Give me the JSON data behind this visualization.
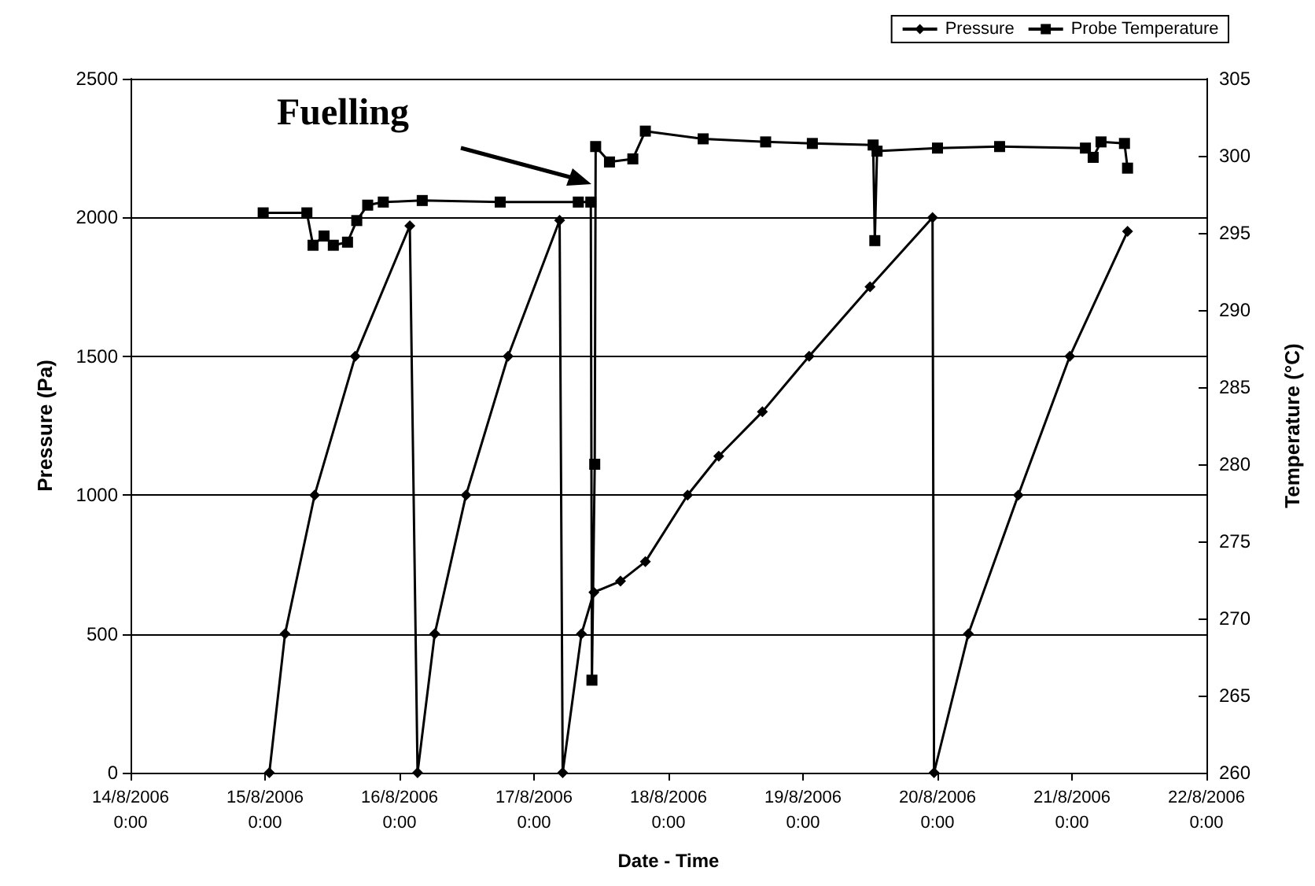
{
  "chart_data": {
    "type": "line",
    "xlabel": "Date - Time",
    "ylabel": "Pressure (Pa)",
    "y2label": "Temperature (°C)",
    "xlim": [
      "2006-08-14T00:00",
      "2006-08-22T00:00"
    ],
    "xticks": [
      {
        "value": "2006-08-14T00:00",
        "label": "14/8/2006\n0:00"
      },
      {
        "value": "2006-08-15T00:00",
        "label": "15/8/2006\n0:00"
      },
      {
        "value": "2006-08-16T00:00",
        "label": "16/8/2006\n0:00"
      },
      {
        "value": "2006-08-17T00:00",
        "label": "17/8/2006\n0:00"
      },
      {
        "value": "2006-08-18T00:00",
        "label": "18/8/2006\n0:00"
      },
      {
        "value": "2006-08-19T00:00",
        "label": "19/8/2006\n0:00"
      },
      {
        "value": "2006-08-20T00:00",
        "label": "20/8/2006\n0:00"
      },
      {
        "value": "2006-08-21T00:00",
        "label": "21/8/2006\n0:00"
      },
      {
        "value": "2006-08-22T00:00",
        "label": "22/8/2006\n0:00"
      }
    ],
    "ylim": [
      0,
      2500
    ],
    "yticks": [
      0,
      500,
      1000,
      1500,
      2000,
      2500
    ],
    "y2lim": [
      260,
      305
    ],
    "y2ticks": [
      260,
      265,
      270,
      275,
      280,
      285,
      290,
      295,
      300,
      305
    ],
    "grid": "y",
    "legend": "top right",
    "annotations": [
      "Fuelling"
    ],
    "series": [
      {
        "name": "Pressure",
        "color": "#000000",
        "marker": "diamond",
        "x": [
          "2006-08-15T00:46",
          "2006-08-15T03:34",
          "2006-08-15T08:51",
          "2006-08-15T16:06",
          "2006-08-16T01:50",
          "2006-08-16T03:13",
          "2006-08-16T06:17",
          "2006-08-16T11:52",
          "2006-08-16T19:22",
          "2006-08-17T04:34",
          "2006-08-17T05:07",
          "2006-08-17T08:28",
          "2006-08-17T10:41",
          "2006-08-17T15:26",
          "2006-08-17T19:52",
          "2006-08-18T03:24",
          "2006-08-18T08:58",
          "2006-08-18T16:45",
          "2006-08-19T01:06",
          "2006-08-19T11:58",
          "2006-08-19T23:07",
          "2006-08-19T23:23",
          "2006-08-20T05:31",
          "2006-08-20T14:25",
          "2006-08-20T23:37",
          "2006-08-21T09:55"
        ],
        "values": [
          0,
          500,
          1000,
          1500,
          1970,
          0,
          500,
          1000,
          1500,
          1990,
          0,
          500,
          650,
          690,
          760,
          1000,
          1140,
          1300,
          1500,
          1750,
          2000,
          0,
          500,
          1000,
          1500,
          1950
        ]
      },
      {
        "name": "Probe Temperature",
        "color": "#000000",
        "marker": "square",
        "axis": "y2",
        "x": [
          "2006-08-14T23:40",
          "2006-08-15T07:28",
          "2006-08-15T08:34",
          "2006-08-15T10:32",
          "2006-08-15T12:11",
          "2006-08-15T14:43",
          "2006-08-15T16:22",
          "2006-08-15T18:19",
          "2006-08-15T21:06",
          "2006-08-16T04:03",
          "2006-08-16T17:58",
          "2006-08-17T07:54",
          "2006-08-17T10:08",
          "2006-08-17T10:20",
          "2006-08-17T10:50",
          "2006-08-17T11:00",
          "2006-08-17T13:28",
          "2006-08-17T17:38",
          "2006-08-17T19:52",
          "2006-08-18T06:11",
          "2006-08-18T17:20",
          "2006-08-19T01:40",
          "2006-08-19T12:31",
          "2006-08-19T12:49",
          "2006-08-19T13:13",
          "2006-08-20T00:00",
          "2006-08-20T11:05",
          "2006-08-21T02:24",
          "2006-08-21T03:47",
          "2006-08-21T05:11",
          "2006-08-21T09:22",
          "2006-08-21T09:55"
        ],
        "values": [
          296.3,
          296.3,
          294.2,
          294.8,
          294.2,
          294.4,
          295.8,
          296.8,
          297.0,
          297.1,
          297.0,
          297.0,
          297.0,
          266.0,
          280.0,
          300.6,
          299.6,
          299.8,
          301.6,
          301.1,
          300.9,
          300.8,
          300.7,
          294.5,
          300.3,
          300.5,
          300.6,
          300.5,
          299.9,
          300.9,
          300.8,
          299.2
        ]
      }
    ]
  }
}
